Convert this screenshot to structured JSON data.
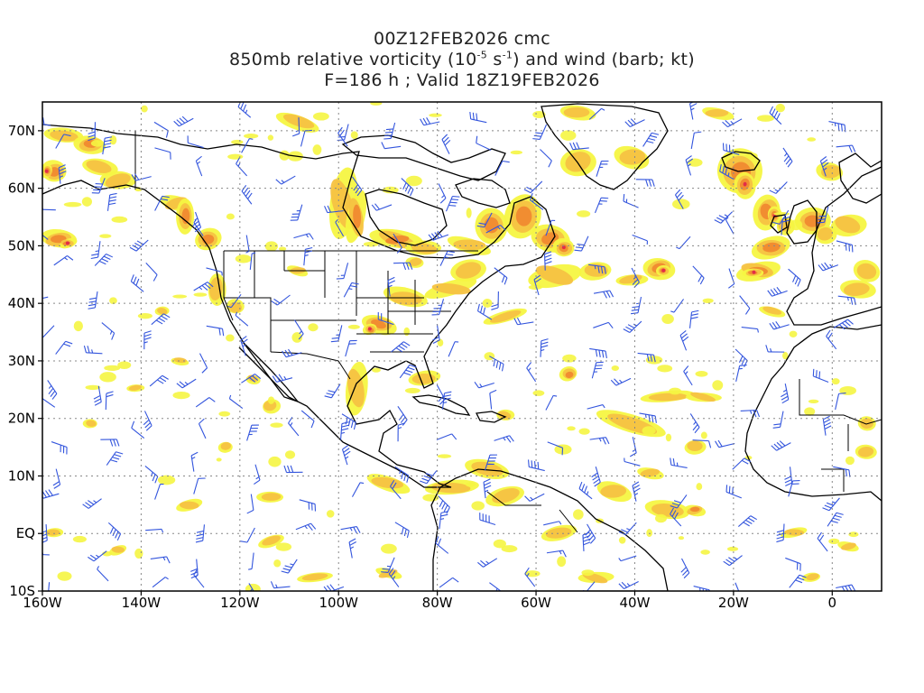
{
  "titles": {
    "line1": "00Z12FEB2026 cmc",
    "line2_pre": "850mb relative vorticity (10",
    "line2_exp1": "-5",
    "line2_mid": " s",
    "line2_exp2": "-1",
    "line2_post": ") and wind (barb; kt)",
    "line3": "F=186 h ; Valid 18Z19FEB2026"
  },
  "map": {
    "projection": "cylindrical equidistant",
    "lon_range": [
      -160,
      10
    ],
    "lat_range": [
      -10,
      75
    ],
    "gridlines": "dotted",
    "lon_ticks": [
      {
        "lon": -160,
        "label": "160W"
      },
      {
        "lon": -140,
        "label": "140W"
      },
      {
        "lon": -120,
        "label": "120W"
      },
      {
        "lon": -100,
        "label": "100W"
      },
      {
        "lon": -80,
        "label": "80W"
      },
      {
        "lon": -60,
        "label": "60W"
      },
      {
        "lon": -40,
        "label": "40W"
      },
      {
        "lon": -20,
        "label": "20W"
      },
      {
        "lon": 0,
        "label": "0"
      }
    ],
    "lat_ticks": [
      {
        "lat": 70,
        "label": "70N"
      },
      {
        "lat": 60,
        "label": "60N"
      },
      {
        "lat": 50,
        "label": "50N"
      },
      {
        "lat": 40,
        "label": "40N"
      },
      {
        "lat": 30,
        "label": "30N"
      },
      {
        "lat": 20,
        "label": "20N"
      },
      {
        "lat": 10,
        "label": "10N"
      },
      {
        "lat": 0,
        "label": "EQ"
      },
      {
        "lat": -10,
        "label": "10S"
      }
    ],
    "colors": {
      "low": "#f5f542",
      "mid": "#f5c242",
      "high": "#f08a30",
      "peak": "#e0284a",
      "barb": "#3355dd",
      "coast": "#000000"
    }
  }
}
